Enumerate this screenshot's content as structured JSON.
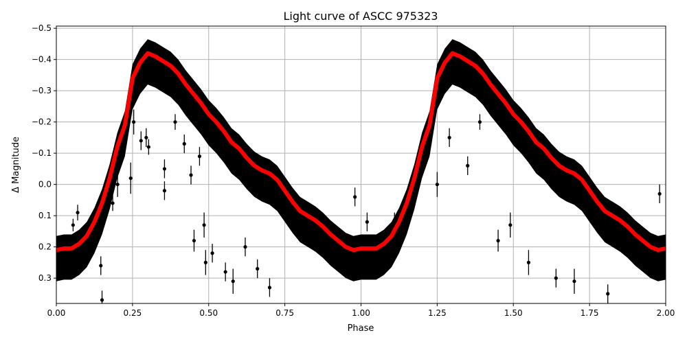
{
  "chart_data": {
    "type": "scatter",
    "title": "Light curve of ASCC 975323",
    "xlabel": "Phase",
    "ylabel": "Δ Magnitude",
    "xlim": [
      0,
      2
    ],
    "ylim": [
      0.381,
      -0.507
    ],
    "y_inverted": true,
    "grid": true,
    "xticks": [
      "0.00",
      "0.25",
      "0.50",
      "0.75",
      "1.00",
      "1.25",
      "1.50",
      "1.75",
      "2.00"
    ],
    "xtick_values": [
      0,
      0.25,
      0.5,
      0.75,
      1,
      1.25,
      1.5,
      1.75,
      2
    ],
    "yticks": [
      "−0.5",
      "−0.4",
      "−0.3",
      "−0.2",
      "−0.1",
      "0.0",
      "0.1",
      "0.2",
      "0.3"
    ],
    "ytick_values": [
      -0.5,
      -0.4,
      -0.3,
      -0.2,
      -0.1,
      0,
      0.1,
      0.2,
      0.3
    ],
    "colors": {
      "observations": "#000000",
      "fit": "#ff0000",
      "grid": "#b0b0b0"
    },
    "fit": {
      "phase": [
        0,
        0.025,
        0.05,
        0.075,
        0.1,
        0.125,
        0.15,
        0.175,
        0.2,
        0.225,
        0.25,
        0.275,
        0.3,
        0.325,
        0.35,
        0.375,
        0.4,
        0.425,
        0.45,
        0.475,
        0.5,
        0.525,
        0.55,
        0.575,
        0.6,
        0.625,
        0.65,
        0.675,
        0.7,
        0.725,
        0.75,
        0.775,
        0.8,
        0.825,
        0.85,
        0.875,
        0.9,
        0.925,
        0.95,
        0.975,
        1.0
      ],
      "magnitude": [
        0.21,
        0.205,
        0.205,
        0.19,
        0.165,
        0.12,
        0.06,
        -0.02,
        -0.12,
        -0.19,
        -0.34,
        -0.39,
        -0.42,
        -0.41,
        -0.395,
        -0.38,
        -0.355,
        -0.32,
        -0.29,
        -0.26,
        -0.225,
        -0.2,
        -0.17,
        -0.135,
        -0.115,
        -0.085,
        -0.06,
        -0.045,
        -0.035,
        -0.015,
        0.02,
        0.055,
        0.085,
        0.1,
        0.115,
        0.135,
        0.16,
        0.18,
        0.2,
        0.21,
        0.205
      ],
      "repeats_every_phase": 1
    },
    "observations_envelope": {
      "upper_offset": -0.045,
      "lower_offset": 0.1
    },
    "outliers": [
      {
        "phase": 0.055,
        "mag": 0.13,
        "err": 0.02
      },
      {
        "phase": 0.07,
        "mag": 0.09,
        "err": 0.025
      },
      {
        "phase": 0.146,
        "mag": 0.26,
        "err": 0.03
      },
      {
        "phase": 0.15,
        "mag": 0.37,
        "err": 0.03
      },
      {
        "phase": 0.185,
        "mag": 0.06,
        "err": 0.025
      },
      {
        "phase": 0.201,
        "mag": 0.0,
        "err": 0.04
      },
      {
        "phase": 0.244,
        "mag": -0.02,
        "err": 0.05
      },
      {
        "phase": 0.254,
        "mag": -0.2,
        "err": 0.04
      },
      {
        "phase": 0.278,
        "mag": -0.14,
        "err": 0.03
      },
      {
        "phase": 0.295,
        "mag": -0.15,
        "err": 0.03
      },
      {
        "phase": 0.303,
        "mag": -0.12,
        "err": 0.025
      },
      {
        "phase": 0.355,
        "mag": -0.05,
        "err": 0.03
      },
      {
        "phase": 0.355,
        "mag": 0.02,
        "err": 0.03
      },
      {
        "phase": 0.39,
        "mag": -0.2,
        "err": 0.025
      },
      {
        "phase": 0.42,
        "mag": -0.13,
        "err": 0.03
      },
      {
        "phase": 0.442,
        "mag": -0.03,
        "err": 0.03
      },
      {
        "phase": 0.452,
        "mag": 0.18,
        "err": 0.035
      },
      {
        "phase": 0.47,
        "mag": -0.09,
        "err": 0.03
      },
      {
        "phase": 0.485,
        "mag": 0.13,
        "err": 0.04
      },
      {
        "phase": 0.49,
        "mag": 0.25,
        "err": 0.04
      },
      {
        "phase": 0.512,
        "mag": 0.22,
        "err": 0.03
      },
      {
        "phase": 0.555,
        "mag": 0.28,
        "err": 0.03
      },
      {
        "phase": 0.58,
        "mag": 0.31,
        "err": 0.04
      },
      {
        "phase": 0.62,
        "mag": 0.2,
        "err": 0.03
      },
      {
        "phase": 0.66,
        "mag": 0.27,
        "err": 0.03
      },
      {
        "phase": 0.7,
        "mag": 0.33,
        "err": 0.03
      },
      {
        "phase": 0.98,
        "mag": 0.04,
        "err": 0.03
      },
      {
        "phase": 1.02,
        "mag": 0.12,
        "err": 0.03
      },
      {
        "phase": 1.11,
        "mag": 0.12,
        "err": 0.03
      },
      {
        "phase": 1.25,
        "mag": 0.0,
        "err": 0.04
      },
      {
        "phase": 1.29,
        "mag": -0.15,
        "err": 0.03
      },
      {
        "phase": 1.35,
        "mag": -0.06,
        "err": 0.03
      },
      {
        "phase": 1.39,
        "mag": -0.2,
        "err": 0.025
      },
      {
        "phase": 1.45,
        "mag": 0.18,
        "err": 0.035
      },
      {
        "phase": 1.49,
        "mag": 0.13,
        "err": 0.04
      },
      {
        "phase": 1.55,
        "mag": 0.25,
        "err": 0.04
      },
      {
        "phase": 1.64,
        "mag": 0.3,
        "err": 0.03
      },
      {
        "phase": 1.7,
        "mag": 0.31,
        "err": 0.04
      },
      {
        "phase": 1.81,
        "mag": 0.35,
        "err": 0.03
      },
      {
        "phase": 1.98,
        "mag": 0.03,
        "err": 0.03
      }
    ]
  }
}
